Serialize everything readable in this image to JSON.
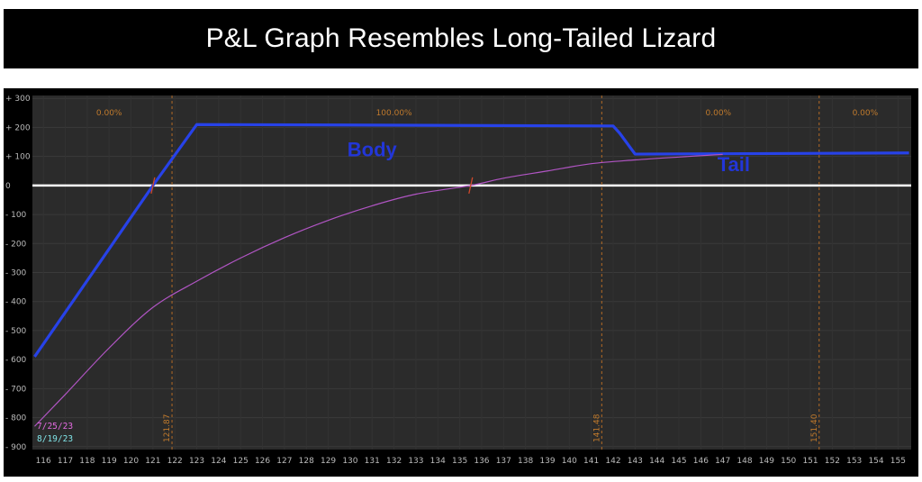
{
  "title": "P&L Graph Resembles Long-Tailed Lizard",
  "chart_data": {
    "type": "line",
    "xlim": [
      115.5,
      155.6
    ],
    "ylim": [
      -910,
      310
    ],
    "x_ticks": [
      116,
      117,
      118,
      119,
      120,
      121,
      122,
      123,
      124,
      125,
      126,
      127,
      128,
      129,
      130,
      131,
      132,
      133,
      134,
      135,
      136,
      137,
      138,
      139,
      140,
      141,
      142,
      143,
      144,
      145,
      146,
      147,
      148,
      149,
      150,
      151,
      152,
      153,
      154,
      155
    ],
    "y_ticks": [
      300,
      200,
      100,
      0,
      -100,
      -200,
      -300,
      -400,
      -500,
      -600,
      -700,
      -800,
      -900
    ],
    "y_tick_labels": [
      "+ 300",
      "+ 200",
      "+ 100",
      "0",
      "- 100",
      "- 200",
      "- 300",
      "- 400",
      "- 500",
      "- 600",
      "- 700",
      "- 800",
      "- 900"
    ],
    "grid": true,
    "zero_line_color": "#ffffff",
    "vertical_markers": [
      {
        "x": 121.87,
        "label": "121.87"
      },
      {
        "x": 141.48,
        "label": "141.48"
      },
      {
        "x": 151.4,
        "label": "151.40"
      }
    ],
    "probability_labels": [
      {
        "x": 119,
        "label": "0.00%"
      },
      {
        "x": 132,
        "label": "100.00%"
      },
      {
        "x": 146.8,
        "label": "0.00%"
      },
      {
        "x": 153.5,
        "label": "0.00%"
      }
    ],
    "series": [
      {
        "name": "8/19/23",
        "color": "#2742e8",
        "x": [
          115.6,
          121.0,
          123.0,
          142.0,
          142.3,
          143.0,
          155.5
        ],
        "y": [
          -590,
          0,
          210,
          205,
          180,
          108,
          112
        ]
      },
      {
        "name": "7/25/23",
        "color": "#b155c4",
        "x": [
          115.6,
          117,
          119,
          121,
          123,
          125,
          127,
          129,
          131,
          133,
          135.5,
          137,
          139,
          141,
          143,
          145,
          147
        ],
        "y": [
          -830,
          -720,
          -560,
          -420,
          -330,
          -250,
          -180,
          -120,
          -70,
          -30,
          0,
          25,
          50,
          75,
          88,
          98,
          107
        ]
      }
    ],
    "breakeven_markers": [
      {
        "x": 121.0,
        "y": 0
      },
      {
        "x": 135.5,
        "y": 0
      }
    ],
    "annotations": [
      {
        "text": "Body",
        "x": 131.0,
        "y": 100
      },
      {
        "text": "Tail",
        "x": 147.5,
        "y": 50
      }
    ],
    "legend": [
      {
        "label": "7/25/23",
        "color": "#e36ae0"
      },
      {
        "label": "8/19/23",
        "color": "#7fe2e6"
      }
    ],
    "legend_position": "bottom-left"
  }
}
